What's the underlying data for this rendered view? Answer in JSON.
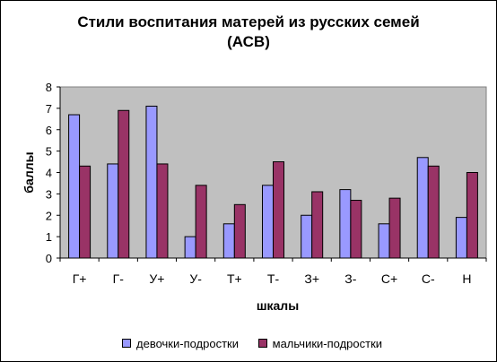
{
  "chart_data": {
    "type": "bar",
    "title_line1": "Стили воспитания матерей из русских семей",
    "title_line2": "(АСВ)",
    "ylabel": "баллы",
    "xlabel": "шкалы",
    "ylim": [
      0,
      8
    ],
    "yticks": [
      "0",
      "1",
      "2",
      "3",
      "4",
      "5",
      "6",
      "7",
      "8"
    ],
    "grid": false,
    "legend_position": "bottom",
    "categories": [
      "Г+",
      "Г-",
      "У+",
      "У-",
      "Т+",
      "Т-",
      "З+",
      "З-",
      "С+",
      "С-",
      "Н"
    ],
    "series": [
      {
        "name": "девочки-подростки",
        "color": "#9999ff",
        "values": [
          6.7,
          4.4,
          7.1,
          1.0,
          1.6,
          3.4,
          2.0,
          3.2,
          1.6,
          4.7,
          1.9
        ]
      },
      {
        "name": "мальчики-подростки",
        "color": "#993366",
        "values": [
          4.3,
          6.9,
          4.4,
          3.4,
          2.5,
          4.5,
          3.1,
          2.7,
          2.8,
          4.3,
          4.0
        ]
      }
    ],
    "plot_background": "#c0c0c0"
  }
}
